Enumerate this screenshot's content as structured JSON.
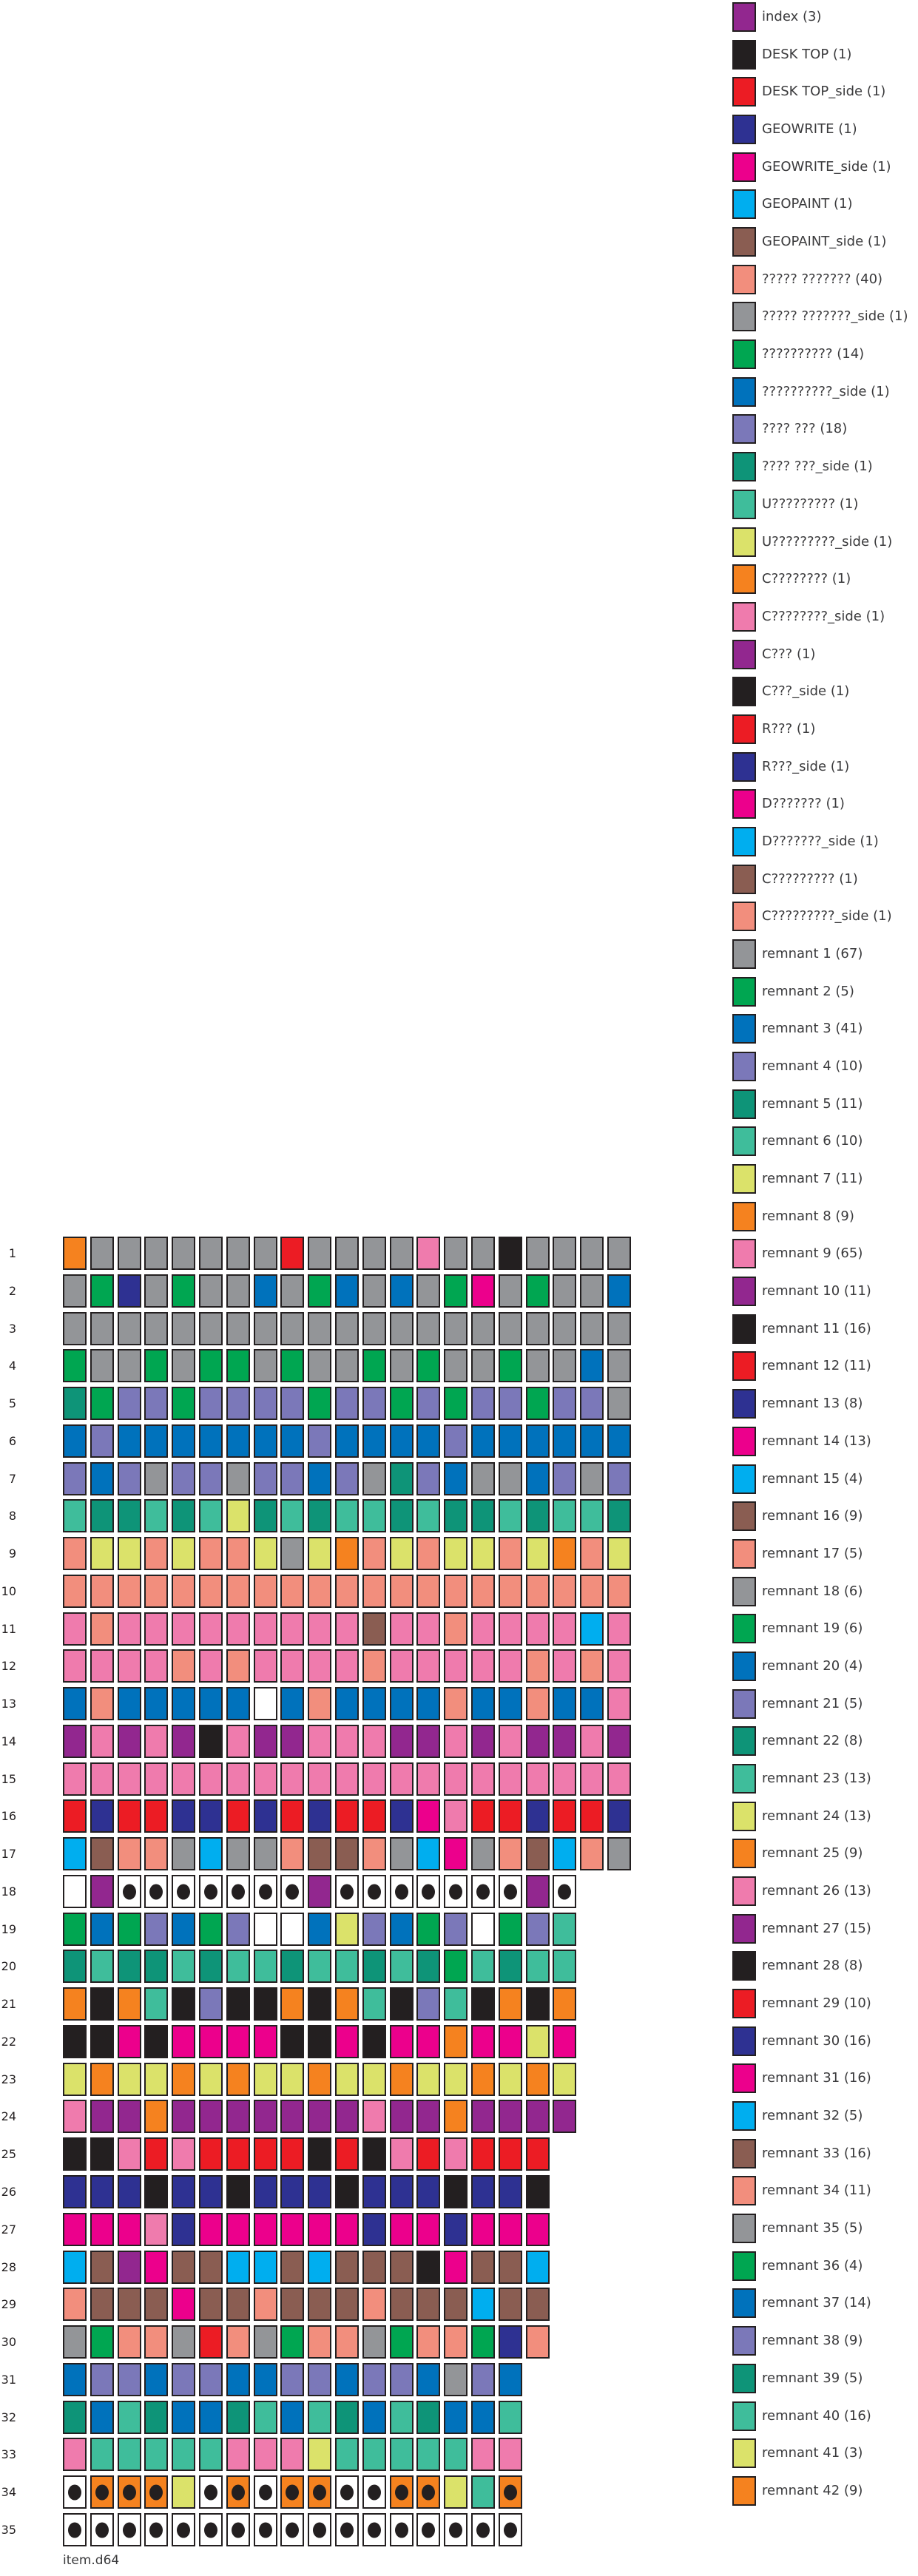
{
  "palette": {
    "or": "#F5821F",
    "gy": "#939598",
    "rd": "#EC1C24",
    "pk": "#EF7BAD",
    "bk": "#231F20",
    "gn": "#00A651",
    "nv": "#2E3192",
    "bl": "#0072BC",
    "mg": "#EC008C",
    "pw": "#7B78B9",
    "dt": "#0E9478",
    "tl": "#3FBD9B",
    "yg": "#DBE26A",
    "bn": "#8A5D52",
    "sa": "#F28E7D",
    "cy": "#00AEEF",
    "pu": "#92278F",
    "wh": "#FFFFFF"
  },
  "palette_names": {
    "or": "orange",
    "gy": "gray",
    "rd": "red",
    "pk": "pink",
    "bk": "black",
    "gn": "green",
    "nv": "dark-blue",
    "bl": "blue",
    "mg": "magenta",
    "pw": "periwinkle",
    "dt": "dark-teal",
    "tl": "teal",
    "yg": "yellow-green",
    "bn": "brown",
    "sa": "salmon",
    "cy": "cyan",
    "pu": "purple",
    "wh": "white"
  },
  "chart_data": {
    "type": "heatmap",
    "title": "item.d64",
    "legend_position": "right",
    "dot_marker": "* suffix = sector drawn with black free-block dot",
    "tracks": [
      {
        "track": "1",
        "cells": "or gy gy gy gy gy gy gy rd gy gy gy gy pk gy gy bk gy gy gy gy"
      },
      {
        "track": "2",
        "cells": "gy gn nv gy gn gy gy bl gy gn bl gy bl gy gn mg gy gn gy gy bl"
      },
      {
        "track": "3",
        "cells": "gy gy gy gy gy gy gy gy gy gy gy gy gy gy gy gy gy gy gy gy gy"
      },
      {
        "track": "4",
        "cells": "gn gy gy gn gy gn gn gy gn gy gy gn gy gn gy gy gn gy gy bl gy"
      },
      {
        "track": "5",
        "cells": "dt gn pw pw gn pw pw pw pw gn pw pw gn pw gn pw pw gn pw pw gy"
      },
      {
        "track": "6",
        "cells": "bl pw bl bl bl bl bl bl bl pw bl bl bl bl pw bl bl bl bl bl bl"
      },
      {
        "track": "7",
        "cells": "pw bl pw gy pw pw gy pw pw bl pw gy dt pw bl gy gy bl pw gy pw"
      },
      {
        "track": "8",
        "cells": "tl dt dt tl dt tl yg dt tl dt tl tl dt tl dt dt tl dt tl tl dt"
      },
      {
        "track": "9",
        "cells": "sa yg yg sa yg sa sa yg gy yg or sa yg sa yg yg sa yg or sa yg"
      },
      {
        "track": "10",
        "cells": "sa sa sa sa sa sa sa sa sa sa sa sa sa sa sa sa sa sa sa sa sa"
      },
      {
        "track": "11",
        "cells": "pk sa pk pk pk pk pk pk pk pk pk bn pk pk sa pk pk pk pk cy pk"
      },
      {
        "track": "12",
        "cells": "pk pk pk pk sa pk sa pk pk pk pk sa pk pk pk pk pk sa pk sa pk"
      },
      {
        "track": "13",
        "cells": "bl sa bl bl bl bl bl wh bl sa bl bl bl bl sa bl bl sa bl bl pk"
      },
      {
        "track": "14",
        "cells": "pu pk pu pk pu bk pk pu pu pk pk pk pu pu pk pu pk pu pu pk pu"
      },
      {
        "track": "15",
        "cells": "pk pk pk pk pk pk pk pk pk pk pk pk pk pk pk pk pk pk pk pk pk"
      },
      {
        "track": "16",
        "cells": "rd nv rd rd nv nv rd nv rd nv rd rd nv mg pk rd rd nv rd rd nv"
      },
      {
        "track": "17",
        "cells": "cy bn sa sa gy cy gy gy sa bn bn sa gy cy mg gy sa bn cy sa gy"
      },
      {
        "track": "18",
        "cells": "wh pu wh* wh* wh* wh* wh* wh* wh* pu wh* wh* wh* wh* wh* wh* wh* pu wh*"
      },
      {
        "track": "19",
        "cells": "gn bl gn pw bl gn pw wh wh bl yg pw bl gn pw wh gn pw tl"
      },
      {
        "track": "20",
        "cells": "dt tl dt dt tl dt tl tl dt tl tl dt tl dt gn tl dt tl tl"
      },
      {
        "track": "21",
        "cells": "or bk or tl bk pw bk bk or bk or tl bk pw tl bk or bk or"
      },
      {
        "track": "22",
        "cells": "bk bk mg bk mg mg mg mg bk bk mg bk mg mg or mg mg yg mg"
      },
      {
        "track": "23",
        "cells": "yg or yg yg or yg or yg yg or yg yg or yg yg or yg or yg"
      },
      {
        "track": "24",
        "cells": "pk pu pu or pu pu pu pu pu pu pu pk pu pu or pu pu pu pu"
      },
      {
        "track": "25",
        "cells": "bk bk pk rd pk rd rd rd rd bk rd bk pk rd pk rd rd rd"
      },
      {
        "track": "26",
        "cells": "nv nv nv bk nv nv bk nv nv nv bk nv nv nv bk nv nv bk"
      },
      {
        "track": "27",
        "cells": "mg mg mg pk nv mg mg mg mg mg mg nv mg mg nv mg mg mg"
      },
      {
        "track": "28",
        "cells": "cy bn pu mg bn bn cy cy bn cy bn bn bn bk mg bn bn cy"
      },
      {
        "track": "29",
        "cells": "sa bn bn bn mg bn bn sa bn bn bn sa bn bn bn cy bn bn"
      },
      {
        "track": "30",
        "cells": "gy gn sa sa gy rd sa gy gn sa sa gy gn sa sa gn nv sa"
      },
      {
        "track": "31",
        "cells": "bl pw pw bl pw pw bl bl pw pw bl pw pw bl gy pw bl"
      },
      {
        "track": "32",
        "cells": "dt bl tl dt bl bl dt tl bl tl dt bl tl dt bl bl tl"
      },
      {
        "track": "33",
        "cells": "pk tl tl tl tl tl pk pk pk yg tl tl tl tl tl pk pk"
      },
      {
        "track": "34",
        "cells": "wh* or* or* or* yg wh* or* wh* or* or* wh* wh* or* or* yg tl or*"
      },
      {
        "track": "35",
        "cells": "wh* wh* wh* wh* wh* wh* wh* wh* wh* wh* wh* wh* wh* wh* wh* wh* wh*"
      }
    ],
    "legend": [
      {
        "label": "index (3)",
        "color": "pu"
      },
      {
        "label": "DESK TOP (1)",
        "color": "bk"
      },
      {
        "label": "DESK TOP_side (1)",
        "color": "rd"
      },
      {
        "label": "GEOWRITE (1)",
        "color": "nv"
      },
      {
        "label": "GEOWRITE_side (1)",
        "color": "mg"
      },
      {
        "label": "GEOPAINT (1)",
        "color": "cy"
      },
      {
        "label": "GEOPAINT_side (1)",
        "color": "bn"
      },
      {
        "label": "????? ??????? (40)",
        "color": "sa"
      },
      {
        "label": "????? ???????_side (1)",
        "color": "gy"
      },
      {
        "label": "?????????? (14)",
        "color": "gn"
      },
      {
        "label": "??????????_side (1)",
        "color": "bl"
      },
      {
        "label": "???? ??? (18)",
        "color": "pw"
      },
      {
        "label": "???? ???_side (1)",
        "color": "dt"
      },
      {
        "label": "U????????? (1)",
        "color": "tl"
      },
      {
        "label": "U?????????_side (1)",
        "color": "yg"
      },
      {
        "label": "C???????? (1)",
        "color": "or"
      },
      {
        "label": "C????????_side (1)",
        "color": "pk"
      },
      {
        "label": "C??? (1)",
        "color": "pu"
      },
      {
        "label": "C???_side (1)",
        "color": "bk"
      },
      {
        "label": "R??? (1)",
        "color": "rd"
      },
      {
        "label": "R???_side (1)",
        "color": "nv"
      },
      {
        "label": "D??????? (1)",
        "color": "mg"
      },
      {
        "label": "D???????_side (1)",
        "color": "cy"
      },
      {
        "label": "C????????? (1)",
        "color": "bn"
      },
      {
        "label": "C?????????_side (1)",
        "color": "sa"
      },
      {
        "label": "remnant 1 (67)",
        "color": "gy"
      },
      {
        "label": "remnant 2 (5)",
        "color": "gn"
      },
      {
        "label": "remnant 3 (41)",
        "color": "bl"
      },
      {
        "label": "remnant 4 (10)",
        "color": "pw"
      },
      {
        "label": "remnant 5 (11)",
        "color": "dt"
      },
      {
        "label": "remnant 6 (10)",
        "color": "tl"
      },
      {
        "label": "remnant 7 (11)",
        "color": "yg"
      },
      {
        "label": "remnant 8 (9)",
        "color": "or"
      },
      {
        "label": "remnant 9 (65)",
        "color": "pk"
      },
      {
        "label": "remnant 10 (11)",
        "color": "pu"
      },
      {
        "label": "remnant 11 (16)",
        "color": "bk"
      },
      {
        "label": "remnant 12 (11)",
        "color": "rd"
      },
      {
        "label": "remnant 13 (8)",
        "color": "nv"
      },
      {
        "label": "remnant 14 (13)",
        "color": "mg"
      },
      {
        "label": "remnant 15 (4)",
        "color": "cy"
      },
      {
        "label": "remnant 16 (9)",
        "color": "bn"
      },
      {
        "label": "remnant 17 (5)",
        "color": "sa"
      },
      {
        "label": "remnant 18 (6)",
        "color": "gy"
      },
      {
        "label": "remnant 19 (6)",
        "color": "gn"
      },
      {
        "label": "remnant 20 (4)",
        "color": "bl"
      },
      {
        "label": "remnant 21 (5)",
        "color": "pw"
      },
      {
        "label": "remnant 22 (8)",
        "color": "dt"
      },
      {
        "label": "remnant 23 (13)",
        "color": "tl"
      },
      {
        "label": "remnant 24 (13)",
        "color": "yg"
      },
      {
        "label": "remnant 25 (9)",
        "color": "or"
      },
      {
        "label": "remnant 26 (13)",
        "color": "pk"
      },
      {
        "label": "remnant 27 (15)",
        "color": "pu"
      },
      {
        "label": "remnant 28 (8)",
        "color": "bk"
      },
      {
        "label": "remnant 29 (10)",
        "color": "rd"
      },
      {
        "label": "remnant 30 (16)",
        "color": "nv"
      },
      {
        "label": "remnant 31 (16)",
        "color": "mg"
      },
      {
        "label": "remnant 32 (5)",
        "color": "cy"
      },
      {
        "label": "remnant 33 (16)",
        "color": "bn"
      },
      {
        "label": "remnant 34 (11)",
        "color": "sa"
      },
      {
        "label": "remnant 35 (5)",
        "color": "gy"
      },
      {
        "label": "remnant 36 (4)",
        "color": "gn"
      },
      {
        "label": "remnant 37 (14)",
        "color": "bl"
      },
      {
        "label": "remnant 38 (9)",
        "color": "pw"
      },
      {
        "label": "remnant 39 (5)",
        "color": "dt"
      },
      {
        "label": "remnant 40 (16)",
        "color": "tl"
      },
      {
        "label": "remnant 41 (3)",
        "color": "yg"
      },
      {
        "label": "remnant 42 (9)",
        "color": "or"
      }
    ]
  }
}
